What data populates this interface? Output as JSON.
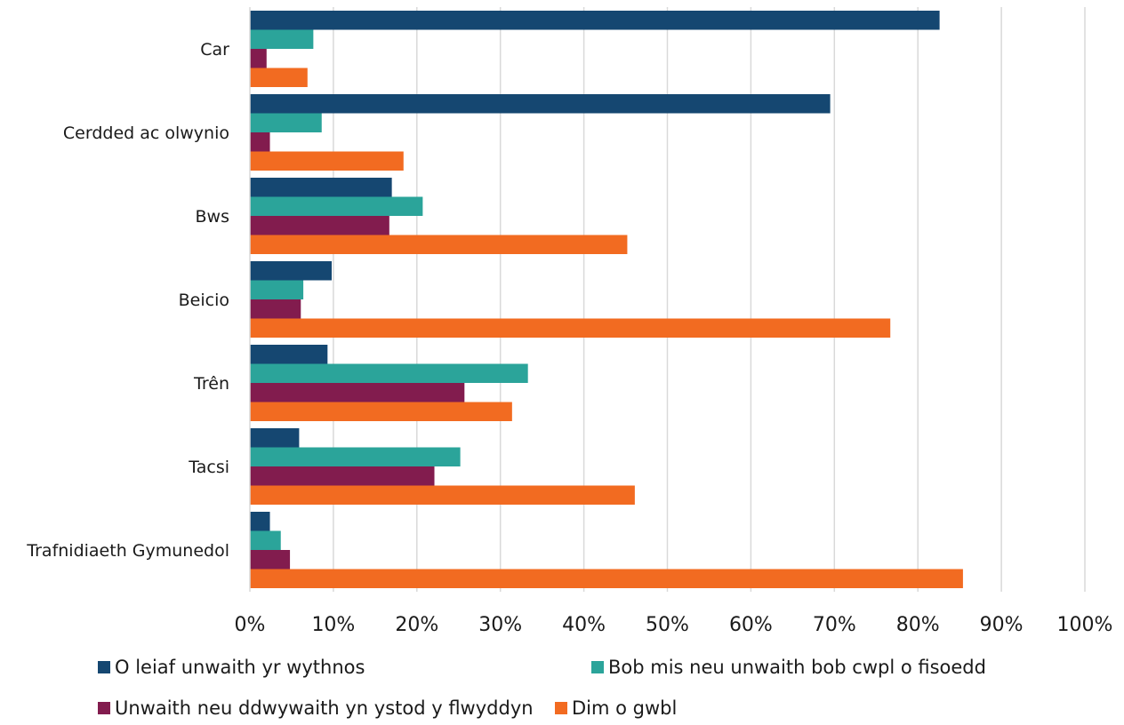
{
  "chart_data": {
    "type": "bar",
    "orientation": "horizontal",
    "title": "",
    "xlabel": "",
    "ylabel": "",
    "categories": [
      "Car",
      "Cerdded ac olwynio",
      "Bws",
      "Beicio",
      "Trên",
      "Tacsi",
      "Trafnidiaeth Gymunedol"
    ],
    "series": [
      {
        "name": "O leiaf unwaith yr wythnos",
        "color": "#154771",
        "values": [
          82.6,
          69.5,
          17.0,
          9.8,
          9.3,
          5.9,
          2.4
        ]
      },
      {
        "name": "Bob mis neu unwaith bob cwpl o fisoedd",
        "color": "#2ba49a",
        "values": [
          7.6,
          8.6,
          20.7,
          6.4,
          33.3,
          25.2,
          3.7
        ]
      },
      {
        "name": "Unwaith neu ddwywaith yn ystod y flwyddyn",
        "color": "#821c4e",
        "values": [
          2.0,
          2.4,
          16.7,
          6.1,
          25.7,
          22.1,
          4.8
        ]
      },
      {
        "name": "Dim o gwbl",
        "color": "#f26b21",
        "values": [
          6.9,
          18.4,
          45.2,
          76.7,
          31.4,
          46.1,
          85.4
        ]
      }
    ],
    "xlim": [
      0,
      100
    ],
    "x_ticks": [
      "0%",
      "10%",
      "20%",
      "30%",
      "40%",
      "50%",
      "60%",
      "70%",
      "80%",
      "90%",
      "100%"
    ],
    "grid": "vertical",
    "legend_position": "bottom"
  }
}
